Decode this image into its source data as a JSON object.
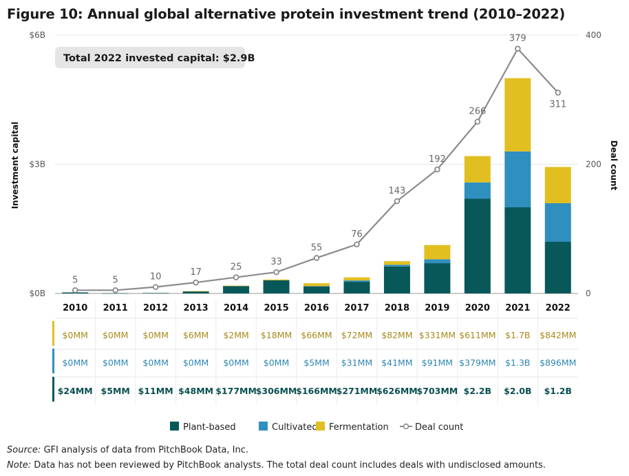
{
  "title": "Figure 10: Annual global alternative protein investment trend (2010–2022)",
  "total_label": "Total 2022 invested capital: $2.9B",
  "source_label": "Source:",
  "source_text": " GFI analysis of data from PitchBook Data, Inc.",
  "note_label": "Note:",
  "note_text": " Data has not been reviewed by PitchBook analysts. The total deal count includes deals with undisclosed amounts.",
  "colors": {
    "plant": "#08585a",
    "cultivated": "#2f8fbe",
    "fermentation": "#e2bf20",
    "deal": "#8a8a8a"
  },
  "chart_data": {
    "type": "bar",
    "stacked": true,
    "title": "Figure 10: Annual global alternative protein investment trend (2010–2022)",
    "ylabel": "Investment capital",
    "y2label": "Deal count",
    "ylim": [
      0,
      6
    ],
    "y_unit": "$B",
    "y_ticks": [
      "$0B",
      "$3B",
      "$6B"
    ],
    "y_tick_values": [
      0,
      3,
      6
    ],
    "y2lim": [
      0,
      400
    ],
    "y2_ticks": [
      "0",
      "200",
      "400"
    ],
    "y2_tick_values": [
      0,
      200,
      400
    ],
    "categories": [
      "2010",
      "2011",
      "2012",
      "2013",
      "2014",
      "2015",
      "2016",
      "2017",
      "2018",
      "2019",
      "2020",
      "2021",
      "2022"
    ],
    "series": [
      {
        "name": "Plant-based",
        "values": [
          0.024,
          0.005,
          0.011,
          0.048,
          0.177,
          0.306,
          0.166,
          0.271,
          0.626,
          0.703,
          2.2,
          2.0,
          1.2
        ],
        "labels": [
          "$24MM",
          "$5MM",
          "$11MM",
          "$48MM",
          "$177MM",
          "$306MM",
          "$166MM",
          "$271MM",
          "$626MM",
          "$703MM",
          "$2.2B",
          "$2.0B",
          "$1.2B"
        ]
      },
      {
        "name": "Cultivated",
        "values": [
          0,
          0,
          0,
          0,
          0,
          0,
          0.005,
          0.031,
          0.041,
          0.091,
          0.379,
          1.3,
          0.896
        ],
        "labels": [
          "$0MM",
          "$0MM",
          "$0MM",
          "$0MM",
          "$0MM",
          "$0MM",
          "$5MM",
          "$31MM",
          "$41MM",
          "$91MM",
          "$379MM",
          "$1.3B",
          "$896MM"
        ]
      },
      {
        "name": "Fermentation",
        "values": [
          0,
          0,
          0,
          0.006,
          0.002,
          0.018,
          0.066,
          0.072,
          0.082,
          0.331,
          0.611,
          1.7,
          0.842
        ],
        "labels": [
          "$0MM",
          "$0MM",
          "$0MM",
          "$6MM",
          "$2MM",
          "$18MM",
          "$66MM",
          "$72MM",
          "$82MM",
          "$331MM",
          "$611MM",
          "$1.7B",
          "$842MM"
        ]
      }
    ],
    "deal_count": {
      "name": "Deal count",
      "values": [
        5,
        5,
        10,
        17,
        25,
        33,
        55,
        76,
        143,
        192,
        266,
        379,
        311
      ]
    },
    "legend": [
      "Plant-based",
      "Cultivated",
      "Fermentation",
      "Deal count"
    ],
    "legend_position": "bottom",
    "total_2022": "$2.9B"
  }
}
